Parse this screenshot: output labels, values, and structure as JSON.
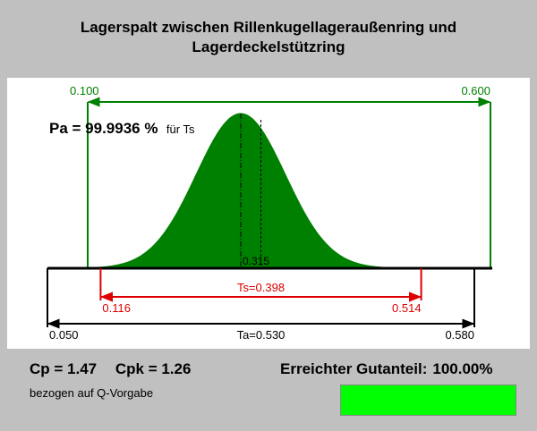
{
  "header": {
    "title_line1": "Lagerspalt zwischen Rillenkugellageraußenring und",
    "title_line2": "Lagerdeckelstützring"
  },
  "chart_data": {
    "type": "area",
    "title": "Lagerspalt zwischen Rillenkugellageraußenring und Lagerdeckelstützring",
    "xlim": [
      0.05,
      0.58
    ],
    "process_limits": {
      "lower": 0.1,
      "upper": 0.6,
      "lower_label": "0.100",
      "upper_label": "0.600",
      "color": "#008000"
    },
    "distribution": {
      "mean": 0.29,
      "sigma": 0.0553,
      "color": "#008000"
    },
    "mean_marker": {
      "value": 0.315,
      "label": "0.315"
    },
    "tolerance_s": {
      "lower": 0.116,
      "upper": 0.514,
      "lower_label": "0.116",
      "upper_label": "0.514",
      "label": "Ts=0.398",
      "color": "#dd0000"
    },
    "tolerance_a": {
      "lower": 0.05,
      "upper": 0.58,
      "lower_label": "0.050",
      "upper_label": "0.580",
      "label": "Ta=0.530",
      "color": "#000000"
    },
    "pa_label": "Pa = 99.9936 %",
    "pa_suffix": "für Ts"
  },
  "stats": {
    "cp_label": "Cp = 1.47",
    "cpk_label": "Cpk = 1.26",
    "basis": "bezogen auf Q-Vorgabe",
    "yield_label": "Erreichter Gutanteil:",
    "yield_value": "100.00%",
    "yield_fraction": 1.0,
    "yield_color": "#00ff00"
  }
}
